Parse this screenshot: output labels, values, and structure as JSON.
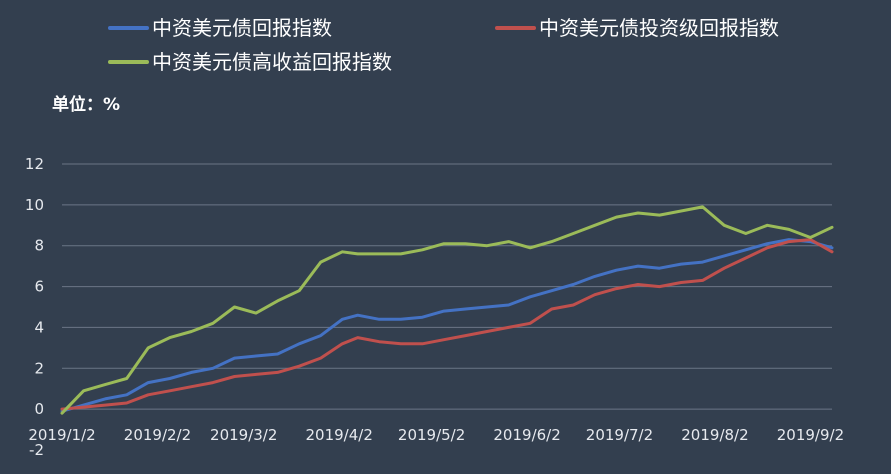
{
  "chart_data": {
    "type": "line",
    "title": "",
    "unit_label": "单位：%",
    "xlabel": "",
    "ylabel": "",
    "ylim": [
      -2,
      12
    ],
    "yticks": [
      12,
      10,
      8,
      6,
      4,
      2,
      0,
      -2
    ],
    "grid": true,
    "legend_position": "top",
    "x_tick_labels": [
      "2019/1/2",
      "2019/2/2",
      "2019/3/2",
      "2019/4/2",
      "2019/5/2",
      "2019/6/2",
      "2019/7/2",
      "2019/8/2",
      "2019/9/2"
    ],
    "x_range": [
      "2019/1/2",
      "2019/9/9"
    ],
    "series": [
      {
        "name": "中资美元债回报指数",
        "color": "#4472c4",
        "points": [
          [
            "2019/1/2",
            -0.1
          ],
          [
            "2019/1/9",
            0.2
          ],
          [
            "2019/1/16",
            0.5
          ],
          [
            "2019/1/23",
            0.7
          ],
          [
            "2019/1/30",
            1.3
          ],
          [
            "2019/2/6",
            1.5
          ],
          [
            "2019/2/13",
            1.8
          ],
          [
            "2019/2/20",
            2.0
          ],
          [
            "2019/2/27",
            2.5
          ],
          [
            "2019/3/6",
            2.6
          ],
          [
            "2019/3/13",
            2.7
          ],
          [
            "2019/3/20",
            3.2
          ],
          [
            "2019/3/27",
            3.6
          ],
          [
            "2019/4/3",
            4.4
          ],
          [
            "2019/4/8",
            4.6
          ],
          [
            "2019/4/15",
            4.4
          ],
          [
            "2019/4/22",
            4.4
          ],
          [
            "2019/4/29",
            4.5
          ],
          [
            "2019/5/6",
            4.8
          ],
          [
            "2019/5/13",
            4.9
          ],
          [
            "2019/5/20",
            5.0
          ],
          [
            "2019/5/27",
            5.1
          ],
          [
            "2019/6/3",
            5.5
          ],
          [
            "2019/6/10",
            5.8
          ],
          [
            "2019/6/17",
            6.1
          ],
          [
            "2019/6/24",
            6.5
          ],
          [
            "2019/7/1",
            6.8
          ],
          [
            "2019/7/8",
            7.0
          ],
          [
            "2019/7/15",
            6.9
          ],
          [
            "2019/7/22",
            7.1
          ],
          [
            "2019/7/29",
            7.2
          ],
          [
            "2019/8/5",
            7.5
          ],
          [
            "2019/8/12",
            7.8
          ],
          [
            "2019/8/19",
            8.1
          ],
          [
            "2019/8/26",
            8.3
          ],
          [
            "2019/9/2",
            8.2
          ],
          [
            "2019/9/9",
            7.9
          ]
        ]
      },
      {
        "name": "中资美元债投资级回报指数",
        "color": "#c0504d",
        "points": [
          [
            "2019/1/2",
            0.0
          ],
          [
            "2019/1/9",
            0.1
          ],
          [
            "2019/1/16",
            0.2
          ],
          [
            "2019/1/23",
            0.3
          ],
          [
            "2019/1/30",
            0.7
          ],
          [
            "2019/2/6",
            0.9
          ],
          [
            "2019/2/13",
            1.1
          ],
          [
            "2019/2/20",
            1.3
          ],
          [
            "2019/2/27",
            1.6
          ],
          [
            "2019/3/6",
            1.7
          ],
          [
            "2019/3/13",
            1.8
          ],
          [
            "2019/3/20",
            2.1
          ],
          [
            "2019/3/27",
            2.5
          ],
          [
            "2019/4/3",
            3.2
          ],
          [
            "2019/4/8",
            3.5
          ],
          [
            "2019/4/15",
            3.3
          ],
          [
            "2019/4/22",
            3.2
          ],
          [
            "2019/4/29",
            3.2
          ],
          [
            "2019/5/6",
            3.4
          ],
          [
            "2019/5/13",
            3.6
          ],
          [
            "2019/5/20",
            3.8
          ],
          [
            "2019/5/27",
            4.0
          ],
          [
            "2019/6/3",
            4.2
          ],
          [
            "2019/6/10",
            4.9
          ],
          [
            "2019/6/17",
            5.1
          ],
          [
            "2019/6/24",
            5.6
          ],
          [
            "2019/7/1",
            5.9
          ],
          [
            "2019/7/8",
            6.1
          ],
          [
            "2019/7/15",
            6.0
          ],
          [
            "2019/7/22",
            6.2
          ],
          [
            "2019/7/29",
            6.3
          ],
          [
            "2019/8/5",
            6.9
          ],
          [
            "2019/8/12",
            7.4
          ],
          [
            "2019/8/19",
            7.9
          ],
          [
            "2019/8/26",
            8.2
          ],
          [
            "2019/9/2",
            8.3
          ],
          [
            "2019/9/9",
            7.7
          ]
        ]
      },
      {
        "name": "中资美元债高收益回报指数",
        "color": "#9bbb59",
        "points": [
          [
            "2019/1/2",
            -0.2
          ],
          [
            "2019/1/9",
            0.9
          ],
          [
            "2019/1/16",
            1.2
          ],
          [
            "2019/1/23",
            1.5
          ],
          [
            "2019/1/30",
            3.0
          ],
          [
            "2019/2/6",
            3.5
          ],
          [
            "2019/2/13",
            3.8
          ],
          [
            "2019/2/20",
            4.2
          ],
          [
            "2019/2/27",
            5.0
          ],
          [
            "2019/3/6",
            4.7
          ],
          [
            "2019/3/13",
            5.3
          ],
          [
            "2019/3/20",
            5.8
          ],
          [
            "2019/3/27",
            7.2
          ],
          [
            "2019/4/3",
            7.7
          ],
          [
            "2019/4/8",
            7.6
          ],
          [
            "2019/4/15",
            7.6
          ],
          [
            "2019/4/22",
            7.6
          ],
          [
            "2019/4/29",
            7.8
          ],
          [
            "2019/5/6",
            8.1
          ],
          [
            "2019/5/13",
            8.1
          ],
          [
            "2019/5/20",
            8.0
          ],
          [
            "2019/5/27",
            8.2
          ],
          [
            "2019/6/3",
            7.9
          ],
          [
            "2019/6/10",
            8.2
          ],
          [
            "2019/6/17",
            8.6
          ],
          [
            "2019/6/24",
            9.0
          ],
          [
            "2019/7/1",
            9.4
          ],
          [
            "2019/7/8",
            9.6
          ],
          [
            "2019/7/15",
            9.5
          ],
          [
            "2019/7/22",
            9.7
          ],
          [
            "2019/7/29",
            9.9
          ],
          [
            "2019/8/5",
            9.0
          ],
          [
            "2019/8/12",
            8.6
          ],
          [
            "2019/8/19",
            9.0
          ],
          [
            "2019/8/26",
            8.8
          ],
          [
            "2019/9/2",
            8.4
          ],
          [
            "2019/9/9",
            8.9
          ]
        ]
      }
    ]
  }
}
